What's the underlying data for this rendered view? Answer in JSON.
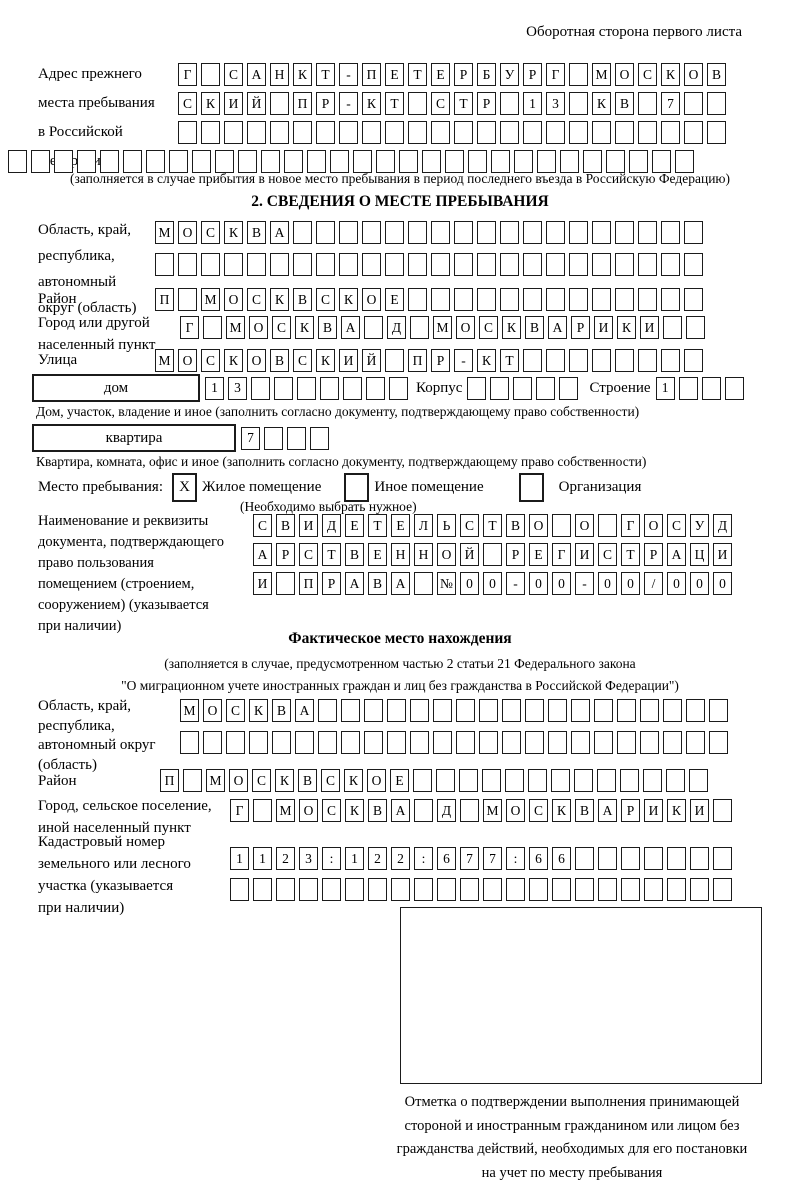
{
  "header": {
    "back_side_label": "Оборотная сторона первого листа"
  },
  "prev_address": {
    "label_lines": [
      "Адрес прежнего",
      "места пребывания",
      "в Российской",
      "Федерации"
    ],
    "rows": [
      "Г САНКТ-ПЕТЕРБУРГ МОСКОВ",
      "СКИЙ ПР-КТ СТР 13 КВ 7  ",
      "                        ",
      "                              "
    ],
    "note": "(заполняется в случае прибытия в новое место пребывания в период последнего въезда в Российскую Федерацию)"
  },
  "section2": {
    "title": "2. СВЕДЕНИЯ О МЕСТЕ ПРЕБЫВАНИЯ",
    "region": {
      "label_lines": [
        "Область, край,",
        "республика,",
        "автономный",
        "округ (область)"
      ],
      "row1": "МОСКВА                  ",
      "row2": "                        "
    },
    "district": {
      "label": "Район",
      "row": "П МОСКВСКОЕ             "
    },
    "city": {
      "label_lines": [
        "Город или другой",
        "населенный пункт"
      ],
      "row": "Г МОСКВА Д МОСКВАРИКИ  "
    },
    "street": {
      "label": "Улица",
      "row": "МОСКОВСКИЙ ПР-КТ        "
    },
    "house": {
      "box_label": "дом",
      "cells": "13       ",
      "korpus_label": "Корпус",
      "korpus_cells": "     ",
      "stroenie_label": "Строение",
      "stroenie_cells": "1   ",
      "note": "Дом, участок, владение и иное (заполнить согласно документу, подтверждающему право собственности)"
    },
    "apartment": {
      "box_label": "квартира",
      "cells": "7   ",
      "note": "Квартира, комната, офис и иное (заполнить согласно документу, подтверждающему право собственности)"
    },
    "stay": {
      "label": "Место пребывания:",
      "options": [
        {
          "label": "Жилое помещение",
          "mark": "X"
        },
        {
          "label": "Иное помещение",
          "mark": ""
        },
        {
          "label": "Организация",
          "mark": ""
        }
      ],
      "note": "(Необходимо выбрать нужное)"
    },
    "document": {
      "label_lines": [
        "Наименование и реквизиты",
        "документа, подтверждающего",
        "право пользования",
        "помещением (строением,",
        "сооружением) (указывается",
        "при наличии)"
      ],
      "rows": [
        "СВИДЕТЕЛЬСТВО О ГОСУД",
        "АРСТВЕННОЙ РЕГИСТРАЦИ",
        "И ПРАВА №00-00-00/000"
      ]
    }
  },
  "actual_location": {
    "title": "Фактическое место нахождения",
    "note_lines": [
      "(заполняется в случае, предусмотренном частью 2 статьи 21 Федерального закона",
      "\"О миграционном учете иностранных граждан и лиц без гражданства в Российской Федерации\")"
    ],
    "region": {
      "label_lines": [
        "Область, край,",
        "республика,",
        "автономный округ",
        "(область)"
      ],
      "row1": "МОСКВА                  ",
      "row2": "                        "
    },
    "district": {
      "label": "Район",
      "row": "П МОСКВСКОЕ             "
    },
    "city": {
      "label_lines": [
        "Город, сельское поселение,",
        "иной населенный пункт"
      ],
      "row": "Г МОСКВА Д МОСКВАРИКИ "
    },
    "cadastral": {
      "label_lines": [
        "Кадастровый номер",
        "земельного или лесного",
        "участка (указывается",
        "при наличии)"
      ],
      "row1": "1123:122:677:66       ",
      "row2": "                      "
    },
    "stamp_caption_lines": [
      "Отметка о подтверждении выполнения принимающей",
      "стороной и иностранным гражданином или лицом без",
      "гражданства действий, необходимых для его постановки",
      "на учет по месту пребывания"
    ]
  }
}
